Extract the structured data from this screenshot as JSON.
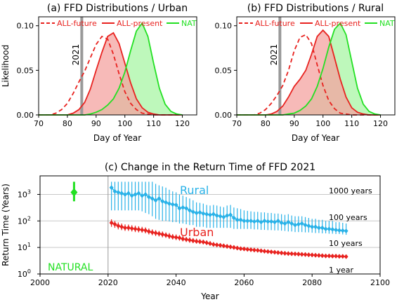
{
  "chart_data": [
    {
      "type": "area",
      "title": "(a) FFD Distributions / Urban",
      "xlabel": "Day of Year",
      "ylabel": "Likelihood",
      "xlim": [
        70,
        125
      ],
      "ylim": [
        0,
        0.11
      ],
      "xticks": [
        "70",
        "80",
        "90",
        "100",
        "110",
        "120"
      ],
      "yticks": [
        "0.00",
        "0.05",
        "0.10"
      ],
      "annotation": {
        "text": "2021",
        "x": 85
      },
      "legend": {
        "placement": "top",
        "entries": [
          "ALL-future",
          "ALL-present",
          "NAT"
        ]
      },
      "x": [
        70,
        72,
        74,
        76,
        78,
        80,
        82,
        84,
        86,
        88,
        90,
        92,
        94,
        96,
        98,
        100,
        102,
        104,
        106,
        108,
        110,
        112,
        114,
        116,
        118,
        120
      ],
      "series": [
        {
          "name": "ALL-future",
          "color": "#e8221f",
          "style": "dashed",
          "fill": false,
          "values": [
            0,
            0,
            0,
            0.002,
            0.006,
            0.013,
            0.024,
            0.037,
            0.049,
            0.064,
            0.079,
            0.088,
            0.085,
            0.068,
            0.046,
            0.026,
            0.013,
            0.006,
            0.002,
            0.001,
            0,
            0,
            0,
            0,
            0,
            0
          ]
        },
        {
          "name": "ALL-present",
          "color": "#e8221f",
          "style": "solid",
          "fill": true,
          "fillColor": "#f4a3a0",
          "values": [
            0,
            0,
            0,
            0,
            0,
            0,
            0.002,
            0.006,
            0.014,
            0.029,
            0.05,
            0.07,
            0.088,
            0.092,
            0.08,
            0.058,
            0.036,
            0.018,
            0.008,
            0.003,
            0.001,
            0,
            0,
            0,
            0,
            0
          ]
        },
        {
          "name": "NAT",
          "color": "#22e022",
          "style": "solid",
          "fill": true,
          "fillColor": "#a8f5a4",
          "values": [
            0,
            0,
            0,
            0,
            0,
            0,
            0,
            0,
            0,
            0.001,
            0.003,
            0.006,
            0.011,
            0.018,
            0.03,
            0.048,
            0.072,
            0.094,
            0.103,
            0.088,
            0.058,
            0.03,
            0.012,
            0.004,
            0.001,
            0
          ]
        }
      ]
    },
    {
      "type": "area",
      "title": "(b) FFD Distributions / Rural",
      "xlabel": "Day of Year",
      "ylabel": "",
      "xlim": [
        70,
        125
      ],
      "ylim": [
        0,
        0.11
      ],
      "xticks": [
        "70",
        "80",
        "90",
        "100",
        "110",
        "120"
      ],
      "yticks": [
        "0.00",
        "0.05",
        "0.10"
      ],
      "annotation": {
        "text": "2021",
        "x": 85
      },
      "legend": {
        "placement": "top",
        "entries": [
          "ALL-future",
          "ALL-present",
          "NAT"
        ]
      },
      "x": [
        70,
        72,
        74,
        76,
        78,
        80,
        82,
        84,
        86,
        88,
        90,
        92,
        94,
        96,
        98,
        100,
        102,
        104,
        106,
        108,
        110,
        112,
        114,
        116,
        118,
        120
      ],
      "series": [
        {
          "name": "ALL-future",
          "color": "#e8221f",
          "style": "dashed",
          "fill": false,
          "values": [
            0,
            0,
            0,
            0,
            0.002,
            0.006,
            0.013,
            0.022,
            0.033,
            0.05,
            0.072,
            0.087,
            0.09,
            0.08,
            0.056,
            0.033,
            0.016,
            0.007,
            0.002,
            0.001,
            0,
            0,
            0,
            0,
            0,
            0
          ]
        },
        {
          "name": "ALL-present",
          "color": "#e8221f",
          "style": "solid",
          "fill": true,
          "fillColor": "#f4a3a0",
          "values": [
            0,
            0,
            0,
            0,
            0,
            0,
            0.001,
            0.004,
            0.01,
            0.02,
            0.032,
            0.04,
            0.05,
            0.068,
            0.088,
            0.095,
            0.088,
            0.064,
            0.04,
            0.02,
            0.008,
            0.003,
            0.001,
            0,
            0,
            0
          ]
        },
        {
          "name": "NAT",
          "color": "#22e022",
          "style": "solid",
          "fill": true,
          "fillColor": "#a8f5a4",
          "values": [
            0,
            0,
            0,
            0,
            0,
            0,
            0,
            0,
            0,
            0.001,
            0.002,
            0.005,
            0.01,
            0.018,
            0.032,
            0.052,
            0.076,
            0.096,
            0.103,
            0.09,
            0.06,
            0.03,
            0.012,
            0.004,
            0.001,
            0
          ]
        }
      ]
    },
    {
      "type": "scatter",
      "title": "(c) Change in the Return Time of FFD 2021",
      "xlabel": "Year",
      "ylabel": "Return Time (Years)",
      "xlim": [
        2000,
        2100
      ],
      "ylim": [
        1,
        5000
      ],
      "yscale": "log",
      "xticks": [
        "2000",
        "2020",
        "2040",
        "2060",
        "2080",
        "2100"
      ],
      "ytick_values": [
        1,
        10,
        100,
        1000
      ],
      "grid": "horizontal",
      "vline": 2020,
      "reference_labels": [
        {
          "text": "1000 years",
          "y": 1000
        },
        {
          "text": "100 years",
          "y": 100
        },
        {
          "text": "10 years",
          "y": 10
        },
        {
          "text": "1 year",
          "y": 1
        }
      ],
      "labels": {
        "rural": "Rural",
        "urban": "Urban",
        "natural": "NATURAL"
      },
      "natural_point": {
        "x": 2010,
        "y": 1200,
        "low": 550,
        "high": 3000,
        "color": "#22e022"
      },
      "series": [
        {
          "name": "Rural",
          "color": "#29b2e8",
          "x": [
            2021,
            2022,
            2023,
            2024,
            2025,
            2026,
            2027,
            2028,
            2029,
            2030,
            2031,
            2032,
            2033,
            2034,
            2035,
            2036,
            2037,
            2038,
            2039,
            2040,
            2041,
            2042,
            2043,
            2044,
            2045,
            2046,
            2047,
            2048,
            2049,
            2050,
            2051,
            2052,
            2053,
            2054,
            2055,
            2056,
            2057,
            2058,
            2059,
            2060,
            2061,
            2062,
            2063,
            2064,
            2065,
            2066,
            2067,
            2068,
            2069,
            2070,
            2071,
            2072,
            2073,
            2074,
            2075,
            2076,
            2077,
            2078,
            2079,
            2080,
            2081,
            2082,
            2083,
            2084,
            2085,
            2086,
            2087,
            2088,
            2089,
            2090
          ],
          "values": [
            1800,
            1300,
            1200,
            1100,
            1000,
            1100,
            900,
            1000,
            1100,
            900,
            1000,
            800,
            700,
            600,
            700,
            550,
            500,
            450,
            420,
            400,
            300,
            320,
            300,
            250,
            220,
            200,
            210,
            190,
            180,
            170,
            180,
            160,
            150,
            140,
            160,
            170,
            130,
            110,
            110,
            100,
            100,
            100,
            95,
            100,
            90,
            100,
            95,
            95,
            90,
            100,
            85,
            80,
            90,
            80,
            70,
            75,
            80,
            70,
            65,
            60,
            60,
            55,
            55,
            50,
            50,
            48,
            46,
            44,
            43,
            42
          ],
          "low": [
            250,
            250,
            250,
            250,
            250,
            250,
            250,
            250,
            250,
            230,
            200,
            180,
            150,
            120,
            110,
            100,
            100,
            95,
            90,
            90,
            80,
            80,
            75,
            70,
            70,
            60,
            60,
            60,
            55,
            55,
            55,
            55,
            55,
            55,
            55,
            55,
            50,
            50,
            50,
            50,
            50,
            50,
            48,
            48,
            46,
            46,
            45,
            45,
            44,
            44,
            43,
            42,
            40,
            40,
            38,
            38,
            38,
            37,
            37,
            36,
            35,
            35,
            34,
            34,
            33,
            33,
            32,
            32,
            31,
            30
          ],
          "high": [
            3000,
            3000,
            3000,
            3000,
            3000,
            3000,
            3000,
            3000,
            3000,
            3000,
            3000,
            3000,
            3000,
            2500,
            2200,
            2000,
            1800,
            1500,
            1300,
            1200,
            1000,
            900,
            800,
            700,
            600,
            500,
            480,
            450,
            400,
            380,
            400,
            380,
            350,
            330,
            380,
            400,
            320,
            300,
            280,
            250,
            240,
            230,
            220,
            220,
            210,
            210,
            200,
            200,
            190,
            190,
            180,
            170,
            180,
            160,
            150,
            150,
            150,
            140,
            130,
            120,
            120,
            110,
            110,
            100,
            100,
            100,
            90,
            90,
            85,
            80
          ]
        },
        {
          "name": "Urban",
          "color": "#e8221f",
          "x": [
            2021,
            2022,
            2023,
            2024,
            2025,
            2026,
            2027,
            2028,
            2029,
            2030,
            2031,
            2032,
            2033,
            2034,
            2035,
            2036,
            2037,
            2038,
            2039,
            2040,
            2041,
            2042,
            2043,
            2044,
            2045,
            2046,
            2047,
            2048,
            2049,
            2050,
            2051,
            2052,
            2053,
            2054,
            2055,
            2056,
            2057,
            2058,
            2059,
            2060,
            2061,
            2062,
            2063,
            2064,
            2065,
            2066,
            2067,
            2068,
            2069,
            2070,
            2071,
            2072,
            2073,
            2074,
            2075,
            2076,
            2077,
            2078,
            2079,
            2080,
            2081,
            2082,
            2083,
            2084,
            2085,
            2086,
            2087,
            2088,
            2089,
            2090
          ],
          "values": [
            85,
            75,
            65,
            60,
            55,
            55,
            52,
            50,
            48,
            46,
            44,
            40,
            37,
            35,
            33,
            31,
            29,
            27,
            25,
            24,
            23,
            21,
            20,
            19,
            18,
            17,
            16.5,
            16,
            15,
            14,
            13,
            12.5,
            12,
            11.5,
            11,
            10.5,
            10,
            9.5,
            9,
            8.8,
            8.5,
            8.2,
            8,
            7.8,
            7.5,
            7.2,
            7,
            6.8,
            6.6,
            6.4,
            6.2,
            6,
            5.9,
            5.8,
            5.7,
            5.6,
            5.5,
            5.4,
            5.3,
            5.2,
            5.1,
            5,
            4.9,
            4.8,
            4.8,
            4.7,
            4.7,
            4.6,
            4.6,
            4.5
          ],
          "low": [
            60,
            55,
            48,
            45,
            42,
            42,
            40,
            38,
            37,
            36,
            34,
            31,
            29,
            27,
            26,
            24,
            23,
            21,
            20,
            19,
            18,
            17,
            16,
            15,
            14.5,
            14,
            13.5,
            13,
            12.5,
            12,
            11,
            10.5,
            10,
            9.8,
            9.5,
            9,
            8.6,
            8.2,
            7.8,
            7.6,
            7.4,
            7.1,
            6.9,
            6.7,
            6.5,
            6.3,
            6.1,
            6,
            5.8,
            5.6,
            5.5,
            5.3,
            5.2,
            5.1,
            5,
            4.9,
            4.8,
            4.7,
            4.6,
            4.6,
            4.5,
            4.4,
            4.3,
            4.2,
            4.2,
            4.1,
            4.1,
            4,
            4,
            4
          ],
          "high": [
            115,
            100,
            88,
            80,
            74,
            73,
            69,
            66,
            63,
            60,
            57,
            52,
            48,
            45,
            42,
            40,
            37,
            35,
            32,
            31,
            29,
            27,
            25,
            24,
            22.5,
            21.5,
            20.5,
            19.5,
            18.5,
            17.5,
            16,
            15,
            14.5,
            13.8,
            13.2,
            12.5,
            11.8,
            11.2,
            10.6,
            10.3,
            10,
            9.6,
            9.3,
            9,
            8.7,
            8.4,
            8.1,
            7.8,
            7.6,
            7.3,
            7.1,
            6.8,
            6.7,
            6.6,
            6.4,
            6.3,
            6.2,
            6.1,
            6,
            5.9,
            5.8,
            5.7,
            5.6,
            5.5,
            5.5,
            5.4,
            5.4,
            5.3,
            5.3,
            5.2
          ]
        }
      ]
    }
  ]
}
